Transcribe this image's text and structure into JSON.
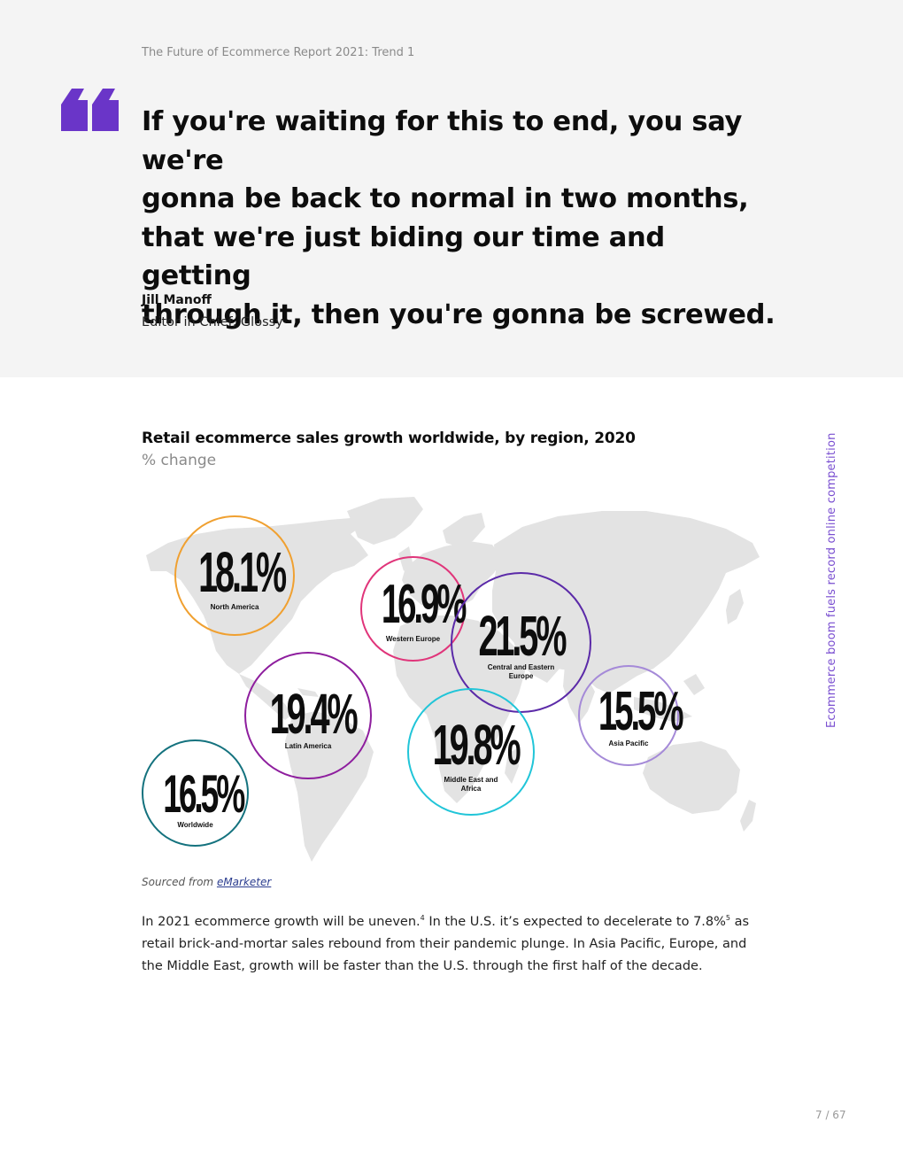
{
  "header": {
    "breadcrumb": "The Future of Ecommerce Report 2021: Trend 1"
  },
  "quote": {
    "lines": [
      "If you're waiting for this to end, you say we're",
      "gonna be back to normal in two months,",
      "that we're just biding our time and getting",
      "through it, then you're gonna be screwed."
    ],
    "author": "Jill Manoff",
    "role": "Editor in Chief, Glossy"
  },
  "side_text": "Ecommerce boom fuels record online competition",
  "chart_data": {
    "type": "bubble-map",
    "title": "Retail ecommerce sales growth worldwide, by region, 2020",
    "subtitle": "% change",
    "regions": [
      {
        "name": "North America",
        "value": 18.1,
        "label": "18.1%",
        "color": "#f0a030"
      },
      {
        "name": "Western Europe",
        "value": 16.9,
        "label": "16.9%",
        "color": "#e0357a"
      },
      {
        "name": "Central and Eastern Europe",
        "value": 21.5,
        "label": "21.5%",
        "color": "#5b2aa8"
      },
      {
        "name": "Latin America",
        "value": 19.4,
        "label": "19.4%",
        "color": "#8e1e9e"
      },
      {
        "name": "Middle East and Africa",
        "value": 19.8,
        "label": "19.8%",
        "color": "#21c5d8"
      },
      {
        "name": "Asia Pacific",
        "value": 15.5,
        "label": "15.5%",
        "color": "#a58ad8"
      },
      {
        "name": "Worldwide",
        "value": 16.5,
        "label": "16.5%",
        "color": "#14727e"
      }
    ]
  },
  "source": {
    "prefix": "Sourced from",
    "link": "eMarketer"
  },
  "body": {
    "p1": "In 2021 ecommerce growth will be uneven.",
    "fn1": "4",
    "p2": " In the U.S. it’s expected to decelerate to 7.8%",
    "fn2": "5",
    "p3": " as retail brick-and-mortar sales rebound from their pandemic plunge. In Asia Pacific, Europe, and the Middle East, growth will be faster than the U.S. through the first half of the decade."
  },
  "page": {
    "number": "7 / 67"
  },
  "colors": {
    "accent": "#6a35c8",
    "map_land": "#e3e3e3",
    "background_top": "#f4f4f4"
  }
}
